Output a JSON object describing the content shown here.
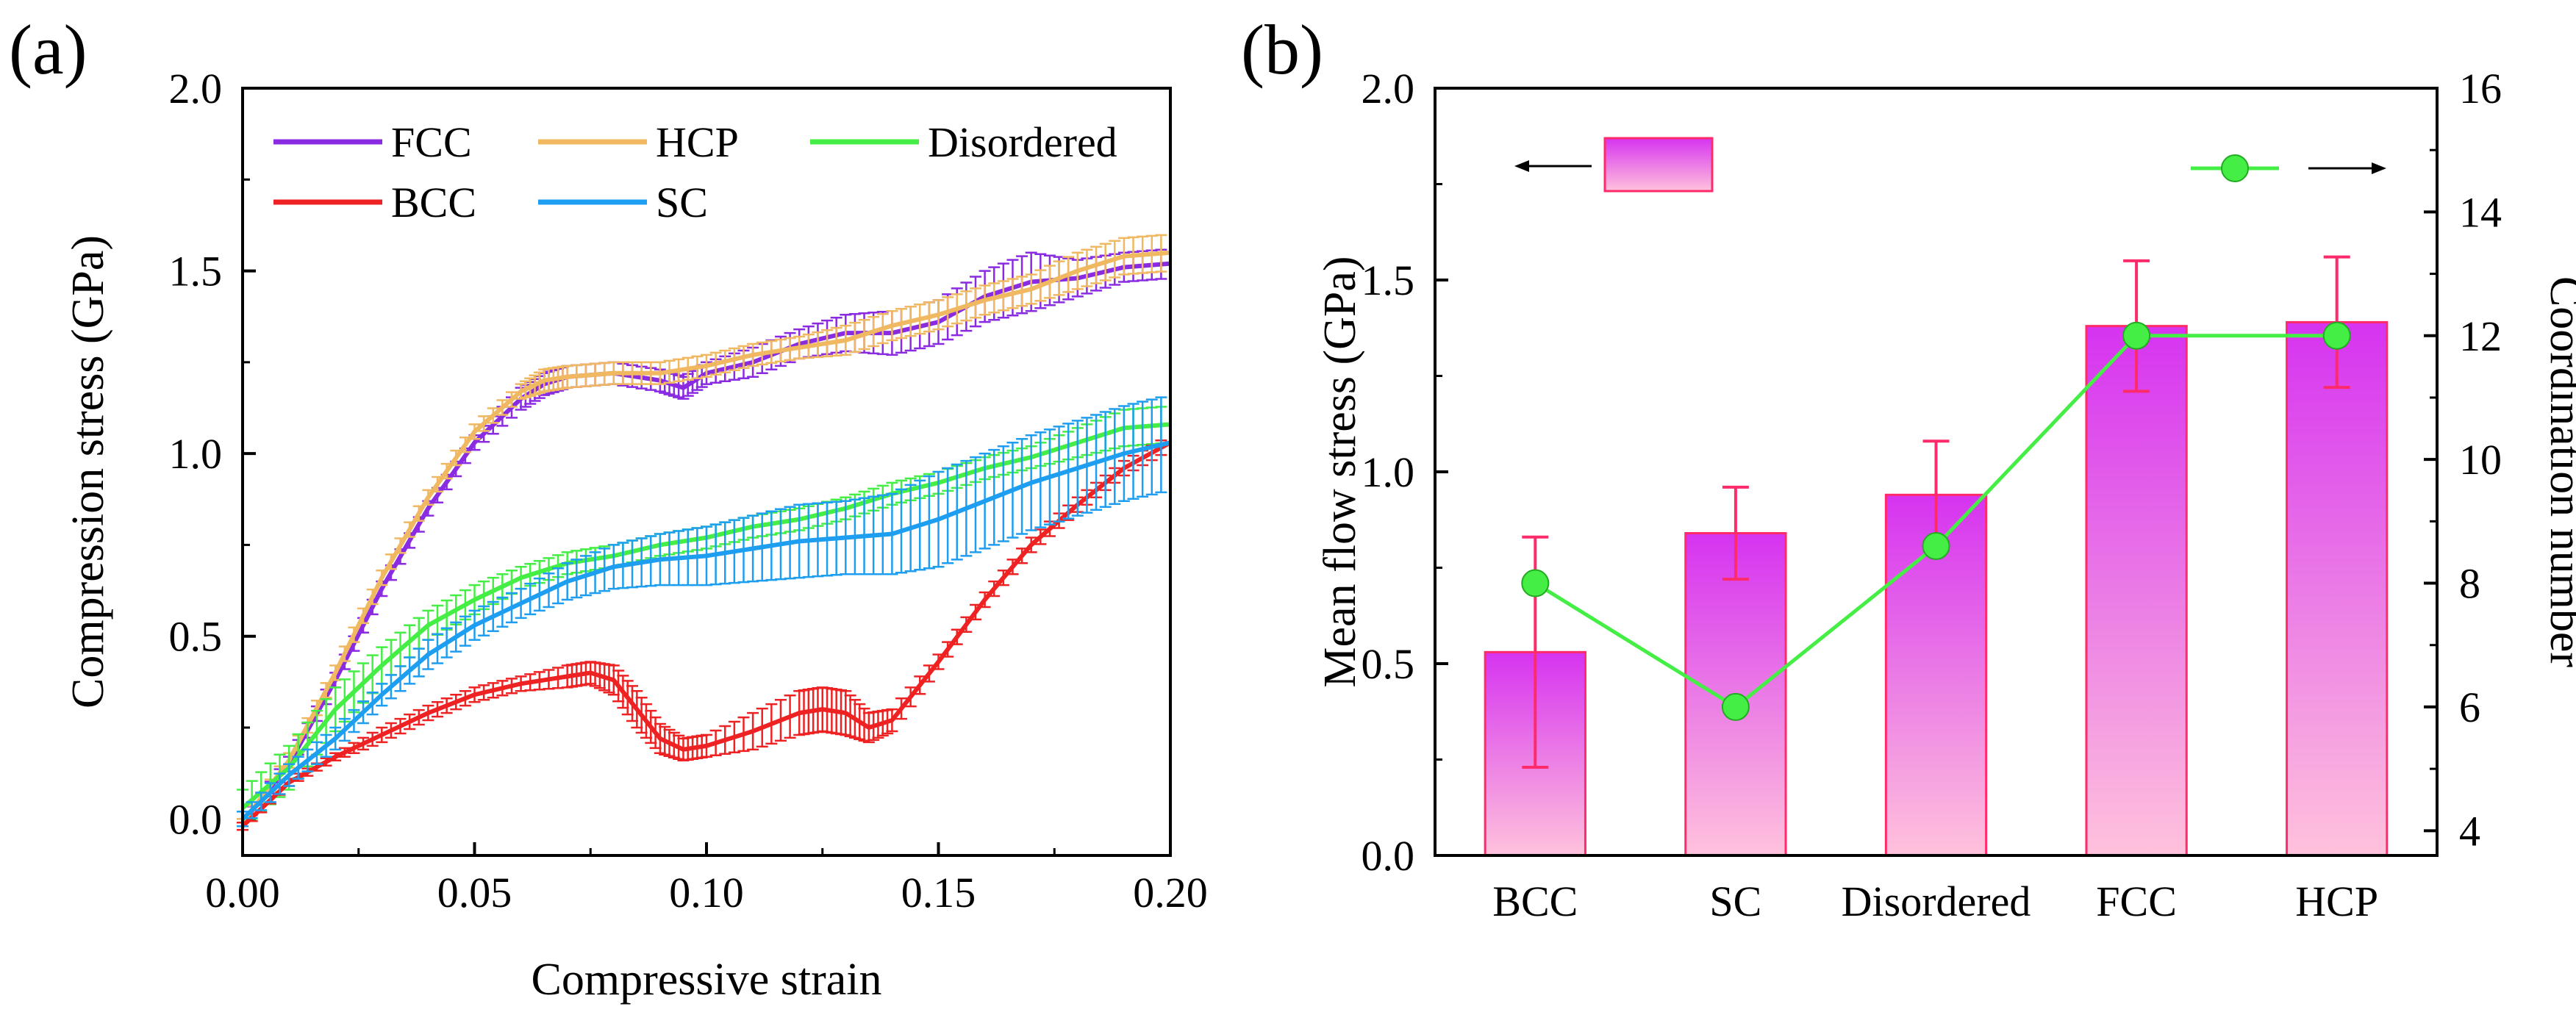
{
  "chart_data": [
    {
      "panel_label": "(a)",
      "type": "line",
      "title": "",
      "xlabel": "Compressive strain",
      "ylabel": "Compression stress (GPa)",
      "xlim": [
        0.0,
        0.2
      ],
      "ylim": [
        -0.1,
        2.0
      ],
      "xticks": [
        "0.00",
        "0.05",
        "0.10",
        "0.15",
        "0.20"
      ],
      "yticks": [
        "0.0",
        "0.5",
        "1.0",
        "1.5",
        "2.0"
      ],
      "legend": "top-left, inside",
      "series": [
        {
          "name": "FCC",
          "color": "#8a2be2",
          "x": [
            0,
            0.01,
            0.02,
            0.03,
            0.04,
            0.05,
            0.06,
            0.065,
            0.07,
            0.08,
            0.09,
            0.095,
            0.1,
            0.11,
            0.12,
            0.13,
            0.14,
            0.15,
            0.16,
            0.17,
            0.18,
            0.19,
            0.2
          ],
          "y": [
            -0.01,
            0.15,
            0.38,
            0.63,
            0.85,
            1.03,
            1.15,
            1.19,
            1.21,
            1.22,
            1.2,
            1.18,
            1.22,
            1.25,
            1.3,
            1.33,
            1.33,
            1.36,
            1.43,
            1.47,
            1.48,
            1.51,
            1.52
          ],
          "err": [
            0.01,
            0.02,
            0.02,
            0.02,
            0.02,
            0.02,
            0.03,
            0.03,
            0.03,
            0.03,
            0.03,
            0.03,
            0.03,
            0.04,
            0.04,
            0.05,
            0.06,
            0.06,
            0.07,
            0.08,
            0.05,
            0.04,
            0.04
          ]
        },
        {
          "name": "HCP",
          "color": "#f0b860",
          "x": [
            0,
            0.01,
            0.02,
            0.03,
            0.04,
            0.05,
            0.06,
            0.065,
            0.07,
            0.08,
            0.09,
            0.1,
            0.11,
            0.12,
            0.13,
            0.14,
            0.15,
            0.16,
            0.17,
            0.18,
            0.19,
            0.2
          ],
          "y": [
            -0.01,
            0.16,
            0.4,
            0.66,
            0.88,
            1.06,
            1.17,
            1.2,
            1.21,
            1.22,
            1.22,
            1.24,
            1.27,
            1.29,
            1.31,
            1.35,
            1.38,
            1.42,
            1.45,
            1.5,
            1.54,
            1.55
          ],
          "err": [
            0.01,
            0.02,
            0.02,
            0.02,
            0.02,
            0.02,
            0.02,
            0.03,
            0.03,
            0.03,
            0.03,
            0.03,
            0.03,
            0.03,
            0.04,
            0.04,
            0.04,
            0.04,
            0.04,
            0.05,
            0.05,
            0.05
          ]
        },
        {
          "name": "Disordered",
          "color": "#44ee44",
          "x": [
            0,
            0.01,
            0.02,
            0.03,
            0.04,
            0.05,
            0.06,
            0.07,
            0.08,
            0.09,
            0.1,
            0.11,
            0.12,
            0.13,
            0.14,
            0.15,
            0.16,
            0.17,
            0.18,
            0.19,
            0.2
          ],
          "y": [
            0.03,
            0.14,
            0.3,
            0.42,
            0.53,
            0.6,
            0.66,
            0.7,
            0.72,
            0.75,
            0.77,
            0.8,
            0.82,
            0.85,
            0.89,
            0.92,
            0.96,
            0.99,
            1.03,
            1.07,
            1.08
          ],
          "err": [
            0.05,
            0.06,
            0.06,
            0.05,
            0.04,
            0.04,
            0.03,
            0.03,
            0.03,
            0.03,
            0.03,
            0.03,
            0.03,
            0.03,
            0.03,
            0.03,
            0.03,
            0.03,
            0.04,
            0.05,
            0.05
          ]
        },
        {
          "name": "BCC",
          "color": "#ee2222",
          "x": [
            0,
            0.01,
            0.02,
            0.03,
            0.04,
            0.05,
            0.06,
            0.07,
            0.075,
            0.08,
            0.085,
            0.09,
            0.095,
            0.1,
            0.11,
            0.12,
            0.125,
            0.13,
            0.135,
            0.14,
            0.15,
            0.16,
            0.17,
            0.18,
            0.19,
            0.2
          ],
          "y": [
            -0.02,
            0.1,
            0.17,
            0.23,
            0.29,
            0.34,
            0.37,
            0.39,
            0.4,
            0.38,
            0.3,
            0.22,
            0.19,
            0.2,
            0.24,
            0.29,
            0.3,
            0.29,
            0.25,
            0.27,
            0.43,
            0.6,
            0.75,
            0.86,
            0.96,
            1.03
          ],
          "err": [
            0.01,
            0.01,
            0.01,
            0.02,
            0.02,
            0.02,
            0.02,
            0.03,
            0.03,
            0.04,
            0.05,
            0.04,
            0.03,
            0.03,
            0.05,
            0.06,
            0.06,
            0.06,
            0.04,
            0.03,
            0.02,
            0.02,
            0.02,
            0.02,
            0.02,
            0.02
          ]
        },
        {
          "name": "SC",
          "color": "#1e9ef0",
          "x": [
            0,
            0.01,
            0.02,
            0.03,
            0.04,
            0.05,
            0.06,
            0.07,
            0.08,
            0.09,
            0.1,
            0.11,
            0.12,
            0.13,
            0.14,
            0.15,
            0.16,
            0.17,
            0.18,
            0.19,
            0.2
          ],
          "y": [
            0.0,
            0.12,
            0.22,
            0.34,
            0.45,
            0.53,
            0.59,
            0.65,
            0.69,
            0.71,
            0.72,
            0.74,
            0.76,
            0.77,
            0.78,
            0.82,
            0.87,
            0.92,
            0.96,
            1.0,
            1.03
          ],
          "err": [
            0.02,
            0.03,
            0.03,
            0.03,
            0.04,
            0.04,
            0.04,
            0.05,
            0.06,
            0.07,
            0.08,
            0.09,
            0.1,
            0.1,
            0.11,
            0.13,
            0.13,
            0.13,
            0.13,
            0.13,
            0.13
          ]
        }
      ]
    },
    {
      "panel_label": "(b)",
      "type": "bar",
      "title": "",
      "xlabel": "",
      "ylabel": "Mean flow stress (GPa)",
      "y2label": "Coordination number",
      "categories": [
        "BCC",
        "SC",
        "Disordered",
        "FCC",
        "HCP"
      ],
      "ylim": [
        0.0,
        2.0
      ],
      "y2lim": [
        3.6,
        16.0
      ],
      "yticks": [
        "0.0",
        "0.5",
        "1.0",
        "1.5",
        "2.0"
      ],
      "y2ticks": [
        "4",
        "6",
        "8",
        "10",
        "12",
        "14",
        "16"
      ],
      "bar_series": {
        "name": "Mean flow stress",
        "axis": "left",
        "values": [
          0.53,
          0.84,
          0.94,
          1.38,
          1.39
        ],
        "err": [
          0.3,
          0.12,
          0.14,
          0.17,
          0.17
        ],
        "fill_top": "#d633f0",
        "fill_bottom": "#ffc2dc",
        "edge": "#ff2a6a"
      },
      "line_series": {
        "name": "Coordination number",
        "axis": "right",
        "values": [
          8,
          6,
          8.6,
          12,
          12
        ],
        "color": "#44ee44"
      },
      "legend": "bar key at top-left with arrow pointing left; line key at top-right with arrow pointing right"
    }
  ]
}
